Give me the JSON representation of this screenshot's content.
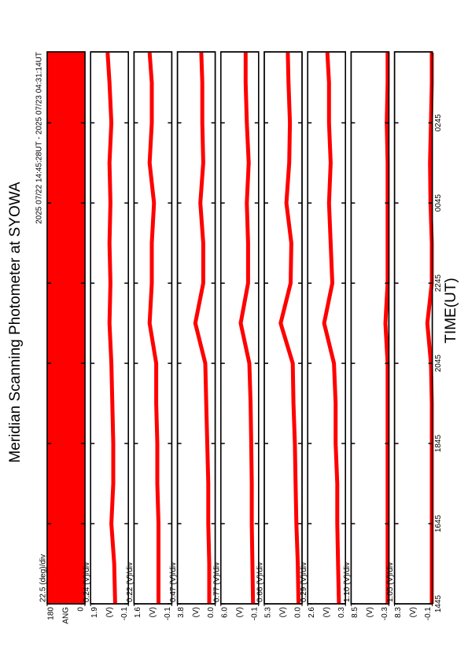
{
  "chart_data": [
    {
      "type": "heatmap",
      "title": "Meridian Scanning Photometer at SYOWA",
      "subtitle": "2025 07/22 14:45:28UT - 2025 07/23 04:31:14UT",
      "unit_label": "22.5 (deg)/div",
      "ylabel": "ANG",
      "ylim": [
        0,
        180
      ],
      "yticks": [
        0,
        180
      ],
      "color": "#ff0000"
    },
    {
      "type": "line",
      "unit_label": "0.24 (V)/div",
      "ylabel": "(V)",
      "ylim": [
        -0.1,
        1.9
      ],
      "yticks": [
        -0.1,
        1.9
      ],
      "xlim": [
        14.75,
        28.52
      ],
      "x": [
        14.75,
        15.75,
        16.75,
        17.75,
        18.75,
        19.75,
        20.75,
        21.75,
        22.75,
        23.75,
        24.75,
        25.75,
        26.75,
        27.75,
        28.5
      ],
      "series": [
        {
          "color": "#ff0000",
          "values": [
            0.6,
            0.65,
            0.8,
            0.7,
            0.7,
            0.75,
            0.8,
            0.9,
            0.85,
            0.9,
            0.85,
            0.9,
            0.8,
            0.9,
            1.0
          ]
        }
      ]
    },
    {
      "type": "line",
      "unit_label": "0.22 (V)/div",
      "ylabel": "(V)",
      "ylim": [
        -0.1,
        1.6
      ],
      "yticks": [
        -0.1,
        1.6
      ],
      "xlim": [
        14.75,
        28.52
      ],
      "x": [
        14.75,
        15.75,
        16.75,
        17.75,
        18.75,
        19.75,
        20.75,
        21.75,
        22.75,
        23.75,
        24.75,
        25.75,
        26.75,
        27.75,
        28.5
      ],
      "series": [
        {
          "color": "#ff0000",
          "values": [
            0.5,
            0.5,
            0.5,
            0.55,
            0.55,
            0.6,
            0.6,
            0.9,
            0.8,
            0.8,
            0.7,
            0.9,
            0.8,
            0.8,
            0.9
          ]
        }
      ]
    },
    {
      "type": "line",
      "unit_label": "0.47 (V)/div",
      "ylabel": "(V)",
      "ylim": [
        0,
        3.8
      ],
      "yticks": [
        {
          "value": 0,
          "label": "0.0"
        },
        3.8
      ],
      "xlim": [
        14.75,
        28.52
      ],
      "x": [
        14.75,
        15.75,
        16.75,
        17.75,
        18.75,
        19.75,
        20.75,
        21.75,
        22.75,
        23.75,
        24.75,
        25.75,
        26.75,
        27.75,
        28.5
      ],
      "series": [
        {
          "color": "#ff0000",
          "values": [
            0.6,
            0.6,
            0.7,
            0.7,
            0.8,
            0.9,
            1.0,
            2.0,
            1.2,
            1.2,
            1.5,
            1.2,
            1.3,
            1.3,
            1.4
          ]
        }
      ]
    },
    {
      "type": "line",
      "unit_label": "0.77 (V)/div",
      "ylabel": "(V)",
      "ylim": [
        -0.1,
        6.0
      ],
      "yticks": [
        -0.1,
        {
          "value": 6,
          "label": "6.0"
        }
      ],
      "xlim": [
        14.75,
        28.52
      ],
      "x": [
        14.75,
        15.75,
        16.75,
        17.75,
        18.75,
        19.75,
        20.75,
        21.75,
        22.75,
        23.75,
        24.75,
        25.75,
        26.75,
        27.75,
        28.5
      ],
      "series": [
        {
          "color": "#ff0000",
          "values": [
            0.8,
            0.9,
            1.0,
            1.0,
            1.1,
            1.2,
            1.4,
            2.8,
            1.6,
            1.6,
            1.8,
            1.5,
            1.8,
            2.0,
            2.0
          ]
        }
      ]
    },
    {
      "type": "line",
      "unit_label": "0.66 (V)/div",
      "ylabel": "(V)",
      "ylim": [
        0,
        5.3
      ],
      "yticks": [
        {
          "value": 0,
          "label": "0.0"
        },
        5.3
      ],
      "xlim": [
        14.75,
        28.52
      ],
      "x": [
        14.75,
        15.75,
        16.75,
        17.75,
        18.75,
        19.75,
        20.75,
        21.75,
        22.75,
        23.75,
        24.75,
        25.75,
        26.75,
        27.75,
        28.5
      ],
      "series": [
        {
          "color": "#ff0000",
          "values": [
            0.5,
            0.6,
            0.8,
            0.9,
            1.0,
            1.2,
            1.3,
            3.0,
            1.6,
            1.5,
            2.2,
            1.8,
            1.7,
            1.9,
            2.0
          ]
        }
      ]
    },
    {
      "type": "line",
      "unit_label": "0.29 (V)/div",
      "ylabel": "(V)",
      "ylim": [
        0.3,
        2.6
      ],
      "yticks": [
        0.3,
        2.6
      ],
      "xlim": [
        14.75,
        28.52
      ],
      "x": [
        14.75,
        15.75,
        16.75,
        17.75,
        18.75,
        19.75,
        20.75,
        21.75,
        22.75,
        23.75,
        24.75,
        25.75,
        26.75,
        27.75,
        28.5
      ],
      "series": [
        {
          "color": "#ff0000",
          "values": [
            0.7,
            0.75,
            0.8,
            0.8,
            0.9,
            0.9,
            1.0,
            1.6,
            1.1,
            1.2,
            1.3,
            1.2,
            1.3,
            1.3,
            1.4
          ]
        }
      ]
    },
    {
      "type": "line",
      "unit_label": "1.10 (V)/div",
      "ylabel": "(V)",
      "ylim": [
        -0.3,
        8.5
      ],
      "yticks": [
        -0.3,
        8.5
      ],
      "xlim": [
        14.75,
        28.52
      ],
      "x": [
        14.75,
        15.75,
        16.75,
        17.75,
        18.75,
        19.75,
        20.75,
        21.75,
        22.75,
        23.75,
        24.75,
        25.75,
        26.75,
        27.75,
        28.5
      ],
      "series": [
        {
          "color": "#ff0000",
          "values": [
            0,
            0,
            0,
            0,
            0,
            0,
            0,
            0.5,
            0,
            0,
            0,
            0,
            0.2,
            0,
            0
          ]
        }
      ]
    },
    {
      "type": "line",
      "unit_label": "1.05 (V)/div",
      "ylabel": "(V)",
      "ylim": [
        -0.1,
        8.3
      ],
      "yticks": [
        -0.1,
        8.3
      ],
      "xlim": [
        14.75,
        28.52
      ],
      "xlabel": "TIME(UT)",
      "xticks": [
        {
          "value": 14.75,
          "label": "1445"
        },
        {
          "value": 16.75,
          "label": "1645"
        },
        {
          "value": 18.75,
          "label": "1845"
        },
        {
          "value": 20.75,
          "label": "2045"
        },
        {
          "value": 22.75,
          "label": "2245"
        },
        {
          "value": 24.75,
          "label": "0045"
        },
        {
          "value": 26.75,
          "label": "0245"
        }
      ],
      "x": [
        14.75,
        15.75,
        16.75,
        17.75,
        18.75,
        19.75,
        20.75,
        21.75,
        22.75,
        23.75,
        24.75,
        25.75,
        26.75,
        27.75,
        28.5
      ],
      "series": [
        {
          "color": "#ff0000",
          "values": [
            0,
            0,
            0,
            0,
            0,
            0,
            0.2,
            1.0,
            0,
            0,
            0.3,
            0.4,
            0.2,
            0,
            0
          ]
        }
      ]
    }
  ]
}
